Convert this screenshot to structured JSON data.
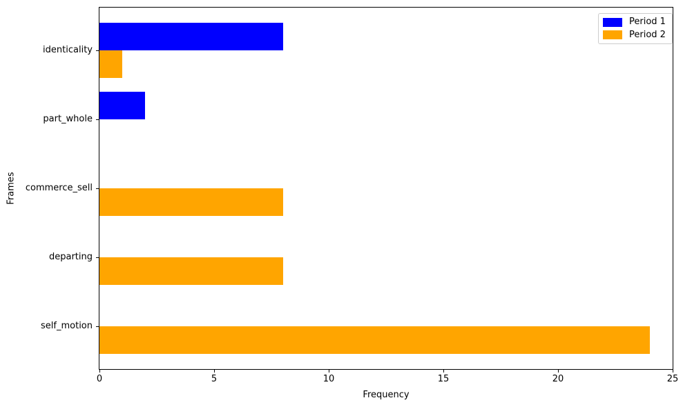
{
  "chart_data": {
    "type": "bar",
    "orientation": "horizontal",
    "title": "",
    "xlabel": "Frequency",
    "ylabel": "Frames",
    "categories": [
      "identicality",
      "part_whole",
      "commerce_sell",
      "departing",
      "self_motion"
    ],
    "series": [
      {
        "name": "Period 1",
        "color": "#0000ff",
        "values": [
          8,
          2,
          0,
          0,
          0
        ]
      },
      {
        "name": "Period 2",
        "color": "#ffa500",
        "values": [
          1,
          0,
          8,
          8,
          24
        ]
      }
    ],
    "xlim": [
      0,
      25
    ],
    "xticks": [
      0,
      5,
      10,
      15,
      20,
      25
    ],
    "grid": false,
    "legend_position": "upper right"
  }
}
